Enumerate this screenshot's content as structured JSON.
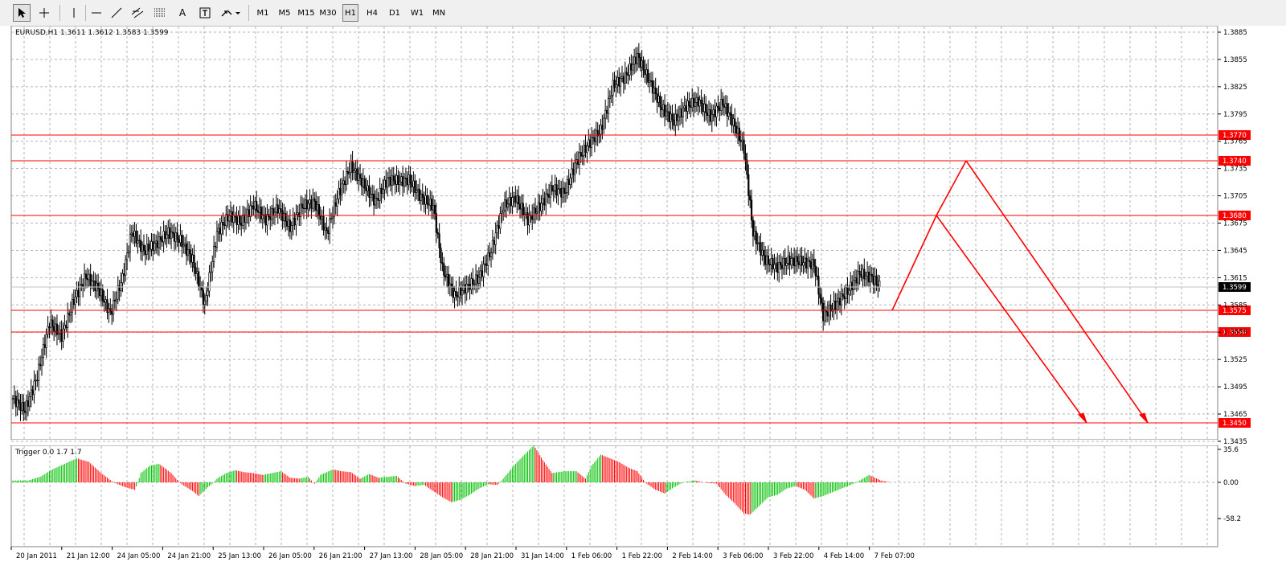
{
  "toolbar": {
    "timeframes": [
      {
        "label": "M1",
        "active": false
      },
      {
        "label": "M5",
        "active": false
      },
      {
        "label": "M15",
        "active": false
      },
      {
        "label": "M30",
        "active": false
      },
      {
        "label": "H1",
        "active": true
      },
      {
        "label": "H4",
        "active": false
      },
      {
        "label": "D1",
        "active": false
      },
      {
        "label": "W1",
        "active": false
      },
      {
        "label": "MN",
        "active": false
      }
    ],
    "text_tool_label": "A"
  },
  "chart": {
    "info": "EURUSD,H1  1.3611 1.3612 1.3583 1.3599",
    "current_price": "1.3599",
    "price_ticks": [
      "1.3885",
      "1.3855",
      "1.3825",
      "1.3795",
      "1.3765",
      "1.3735",
      "1.3705",
      "1.3675",
      "1.3645",
      "1.3615",
      "1.3585",
      "1.3555",
      "1.3525",
      "1.3495",
      "1.3465",
      "1.3435"
    ],
    "time_labels": [
      "20 Jan 2011",
      "21 Jan 12:00",
      "24 Jan 05:00",
      "24 Jan 21:00",
      "25 Jan 13:00",
      "26 Jan 05:00",
      "26 Jan 21:00",
      "27 Jan 13:00",
      "28 Jan 05:00",
      "28 Jan 21:00",
      "31 Jan 14:00",
      "1 Feb 06:00",
      "1 Feb 22:00",
      "2 Feb 14:00",
      "3 Feb 06:00",
      "3 Feb 22:00",
      "4 Feb 14:00",
      "7 Feb 07:00"
    ],
    "levels": [
      "1.3770",
      "1.3740",
      "1.3680",
      "1.3575",
      "1.3550",
      "1.3450"
    ],
    "colors": {
      "level": "#ff0000",
      "up": "#00c000",
      "down": "#ff0000",
      "candle": "#000000"
    }
  },
  "indicator": {
    "info": "Trigger 0.0 1.7 1.7",
    "ticks": [
      "35.6",
      "0.00",
      "-58.2"
    ]
  },
  "chart_data": {
    "type": "candlestick",
    "symbol": "EURUSD",
    "timeframe": "H1",
    "last_bar": {
      "open": 1.3611,
      "high": 1.3612,
      "low": 1.3583,
      "close": 1.3599
    },
    "ylim": [
      1.3429,
      1.3892
    ],
    "horizontal_levels": [
      1.377,
      1.374,
      1.368,
      1.3575,
      1.355,
      1.345
    ],
    "close_path": [
      [
        0,
        1.3475
      ],
      [
        8,
        1.3462
      ],
      [
        16,
        1.35
      ],
      [
        24,
        1.356
      ],
      [
        32,
        1.3545
      ],
      [
        40,
        1.3585
      ],
      [
        48,
        1.3612
      ],
      [
        56,
        1.3598
      ],
      [
        64,
        1.357
      ],
      [
        72,
        1.361
      ],
      [
        78,
        1.3662
      ],
      [
        86,
        1.364
      ],
      [
        94,
        1.3648
      ],
      [
        102,
        1.3661
      ],
      [
        110,
        1.3652
      ],
      [
        118,
        1.363
      ],
      [
        126,
        1.358
      ],
      [
        134,
        1.366
      ],
      [
        142,
        1.368
      ],
      [
        150,
        1.3672
      ],
      [
        158,
        1.3692
      ],
      [
        166,
        1.3675
      ],
      [
        174,
        1.3688
      ],
      [
        182,
        1.3666
      ],
      [
        190,
        1.369
      ],
      [
        198,
        1.3695
      ],
      [
        206,
        1.366
      ],
      [
        214,
        1.3705
      ],
      [
        222,
        1.3735
      ],
      [
        230,
        1.3715
      ],
      [
        238,
        1.3695
      ],
      [
        246,
        1.372
      ],
      [
        254,
        1.3718
      ],
      [
        260,
        1.372
      ],
      [
        268,
        1.37
      ],
      [
        276,
        1.369
      ],
      [
        282,
        1.362
      ],
      [
        290,
        1.359
      ],
      [
        298,
        1.36
      ],
      [
        306,
        1.361
      ],
      [
        314,
        1.364
      ],
      [
        322,
        1.369
      ],
      [
        330,
        1.37
      ],
      [
        338,
        1.3675
      ],
      [
        346,
        1.369
      ],
      [
        354,
        1.371
      ],
      [
        362,
        1.3705
      ],
      [
        370,
        1.374
      ],
      [
        378,
        1.376
      ],
      [
        386,
        1.3775
      ],
      [
        394,
        1.3825
      ],
      [
        402,
        1.3835
      ],
      [
        410,
        1.3858
      ],
      [
        418,
        1.383
      ],
      [
        426,
        1.38
      ],
      [
        434,
        1.3785
      ],
      [
        442,
        1.3802
      ],
      [
        450,
        1.3808
      ],
      [
        458,
        1.379
      ],
      [
        466,
        1.3806
      ],
      [
        474,
        1.378
      ],
      [
        480,
        1.3755
      ],
      [
        486,
        1.366
      ],
      [
        494,
        1.363
      ],
      [
        502,
        1.3622
      ],
      [
        510,
        1.363
      ],
      [
        518,
        1.3628
      ],
      [
        526,
        1.3625
      ],
      [
        532,
        1.3568
      ],
      [
        540,
        1.358
      ],
      [
        548,
        1.3595
      ],
      [
        556,
        1.3615
      ],
      [
        564,
        1.361
      ],
      [
        570,
        1.3599
      ]
    ],
    "indicator_series": [
      [
        0,
        2
      ],
      [
        10,
        2
      ],
      [
        18,
        6
      ],
      [
        26,
        14
      ],
      [
        34,
        20
      ],
      [
        42,
        26
      ],
      [
        50,
        22
      ],
      [
        58,
        10
      ],
      [
        66,
        0
      ],
      [
        74,
        -8
      ],
      [
        80,
        -12
      ],
      [
        84,
        10
      ],
      [
        90,
        18
      ],
      [
        96,
        20
      ],
      [
        104,
        10
      ],
      [
        112,
        -5
      ],
      [
        118,
        -14
      ],
      [
        122,
        -22
      ],
      [
        128,
        -8
      ],
      [
        134,
        4
      ],
      [
        140,
        10
      ],
      [
        146,
        13
      ],
      [
        152,
        11
      ],
      [
        158,
        10
      ],
      [
        164,
        8
      ],
      [
        170,
        10
      ],
      [
        176,
        12
      ],
      [
        182,
        5
      ],
      [
        188,
        4
      ],
      [
        194,
        6
      ],
      [
        198,
        -2
      ],
      [
        202,
        8
      ],
      [
        210,
        14
      ],
      [
        216,
        12
      ],
      [
        222,
        11
      ],
      [
        228,
        4
      ],
      [
        234,
        9
      ],
      [
        240,
        5
      ],
      [
        246,
        6
      ],
      [
        252,
        7
      ],
      [
        258,
        -2
      ],
      [
        264,
        -6
      ],
      [
        270,
        -4
      ],
      [
        276,
        -14
      ],
      [
        282,
        -24
      ],
      [
        288,
        -32
      ],
      [
        294,
        -28
      ],
      [
        300,
        -20
      ],
      [
        306,
        -10
      ],
      [
        312,
        -3
      ],
      [
        318,
        -4
      ],
      [
        324,
        8
      ],
      [
        330,
        20
      ],
      [
        336,
        30
      ],
      [
        342,
        40
      ],
      [
        348,
        24
      ],
      [
        354,
        10
      ],
      [
        362,
        12
      ],
      [
        370,
        12
      ],
      [
        376,
        4
      ],
      [
        380,
        18
      ],
      [
        386,
        30
      ],
      [
        392,
        26
      ],
      [
        398,
        22
      ],
      [
        404,
        16
      ],
      [
        410,
        12
      ],
      [
        416,
        -2
      ],
      [
        422,
        -12
      ],
      [
        428,
        -18
      ],
      [
        434,
        -8
      ],
      [
        440,
        0
      ],
      [
        448,
        2
      ],
      [
        456,
        -1
      ],
      [
        462,
        -2
      ],
      [
        468,
        -20
      ],
      [
        474,
        -34
      ],
      [
        480,
        -50
      ],
      [
        484,
        -52
      ],
      [
        490,
        -38
      ],
      [
        496,
        -24
      ],
      [
        502,
        -20
      ],
      [
        508,
        -10
      ],
      [
        514,
        -6
      ],
      [
        520,
        -12
      ],
      [
        526,
        -26
      ],
      [
        532,
        -22
      ],
      [
        540,
        -14
      ],
      [
        548,
        -6
      ],
      [
        556,
        2
      ],
      [
        562,
        8
      ],
      [
        570,
        2
      ],
      [
        576,
        0
      ]
    ],
    "projection_lines": [
      [
        [
          "2011-02-07 07:00",
          1.3575
        ],
        [
          "pivot-a",
          1.368
        ]
      ],
      [
        [
          "pivot-a",
          1.368
        ],
        [
          "pivot-b",
          1.374
        ]
      ],
      [
        [
          "pivot-a",
          1.368
        ],
        [
          "target-a",
          1.345
        ]
      ],
      [
        [
          "pivot-b",
          1.374
        ],
        [
          "target-b",
          1.345
        ]
      ]
    ]
  }
}
